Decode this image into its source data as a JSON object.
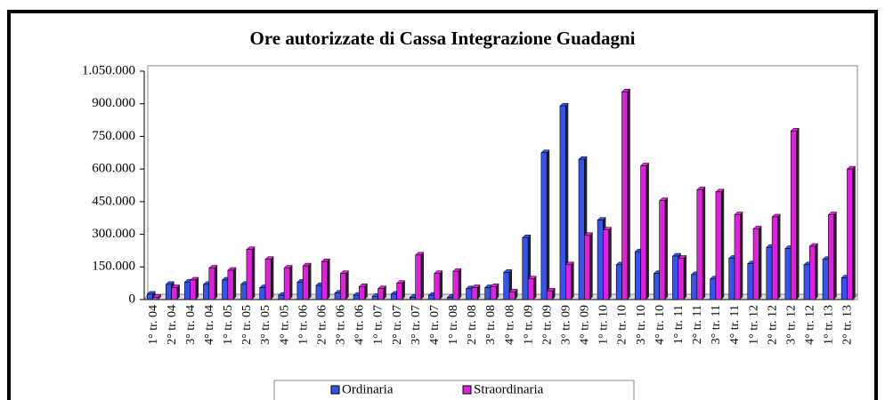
{
  "chart_data": {
    "type": "bar",
    "title": "Ore autorizzate di Cassa Integrazione Guadagni",
    "categories": [
      "1° tr. 04",
      "2° tr. 04",
      "3° tr. 04",
      "4° tr. 04",
      "1° tr. 05",
      "2° tr. 05",
      "3° tr. 05",
      "4° tr. 05",
      "1° tr. 06",
      "2° tr. 06",
      "3° tr. 06",
      "4° tr. 06",
      "1° tr. 07",
      "2° tr. 07",
      "3° tr. 07",
      "4° tr. 07",
      "1° tr. 08",
      "2° tr. 08",
      "3° tr. 08",
      "4° tr. 08",
      "1° tr. 09",
      "2° tr. 09",
      "3° tr. 09",
      "4° tr. 09",
      "1° tr. 10",
      "2° tr. 10",
      "3° tr. 10",
      "4° tr. 10",
      "1° tr. 11",
      "2° tr. 11",
      "3° tr. 11",
      "4° tr. 11",
      "1° tr. 12",
      "2° tr. 12",
      "3° tr. 12",
      "4° tr. 12",
      "1° tr. 13",
      "2° tr. 13"
    ],
    "series": [
      {
        "name": "Ordinaria",
        "color": "#3355ee",
        "values": [
          25000,
          70000,
          80000,
          70000,
          90000,
          70000,
          55000,
          20000,
          80000,
          65000,
          30000,
          20000,
          15000,
          25000,
          10000,
          20000,
          10000,
          50000,
          55000,
          125000,
          285000,
          675000,
          890000,
          645000,
          365000,
          160000,
          220000,
          120000,
          200000,
          115000,
          95000,
          190000,
          165000,
          240000,
          235000,
          160000,
          185000,
          100000
        ]
      },
      {
        "name": "Straordinaria",
        "color": "#e020dd",
        "values": [
          10000,
          55000,
          90000,
          145000,
          135000,
          230000,
          185000,
          145000,
          155000,
          175000,
          120000,
          60000,
          50000,
          75000,
          205000,
          120000,
          130000,
          55000,
          60000,
          35000,
          95000,
          40000,
          160000,
          295000,
          320000,
          955000,
          615000,
          455000,
          190000,
          505000,
          495000,
          390000,
          325000,
          380000,
          775000,
          245000,
          390000,
          600000
        ]
      }
    ],
    "ylim": [
      0,
      1050000
    ],
    "yticks": [
      0,
      {
        "value": 150000,
        "label": "150.000"
      },
      {
        "value": 300000,
        "label": "300.000"
      },
      {
        "value": 450000,
        "label": "450.000"
      },
      {
        "value": 600000,
        "label": "600.000"
      },
      {
        "value": 750000,
        "label": "750.000"
      },
      {
        "value": 900000,
        "label": "900.000"
      },
      {
        "value": 1050000,
        "label": "1.050.000"
      }
    ],
    "legend": "bottom"
  }
}
